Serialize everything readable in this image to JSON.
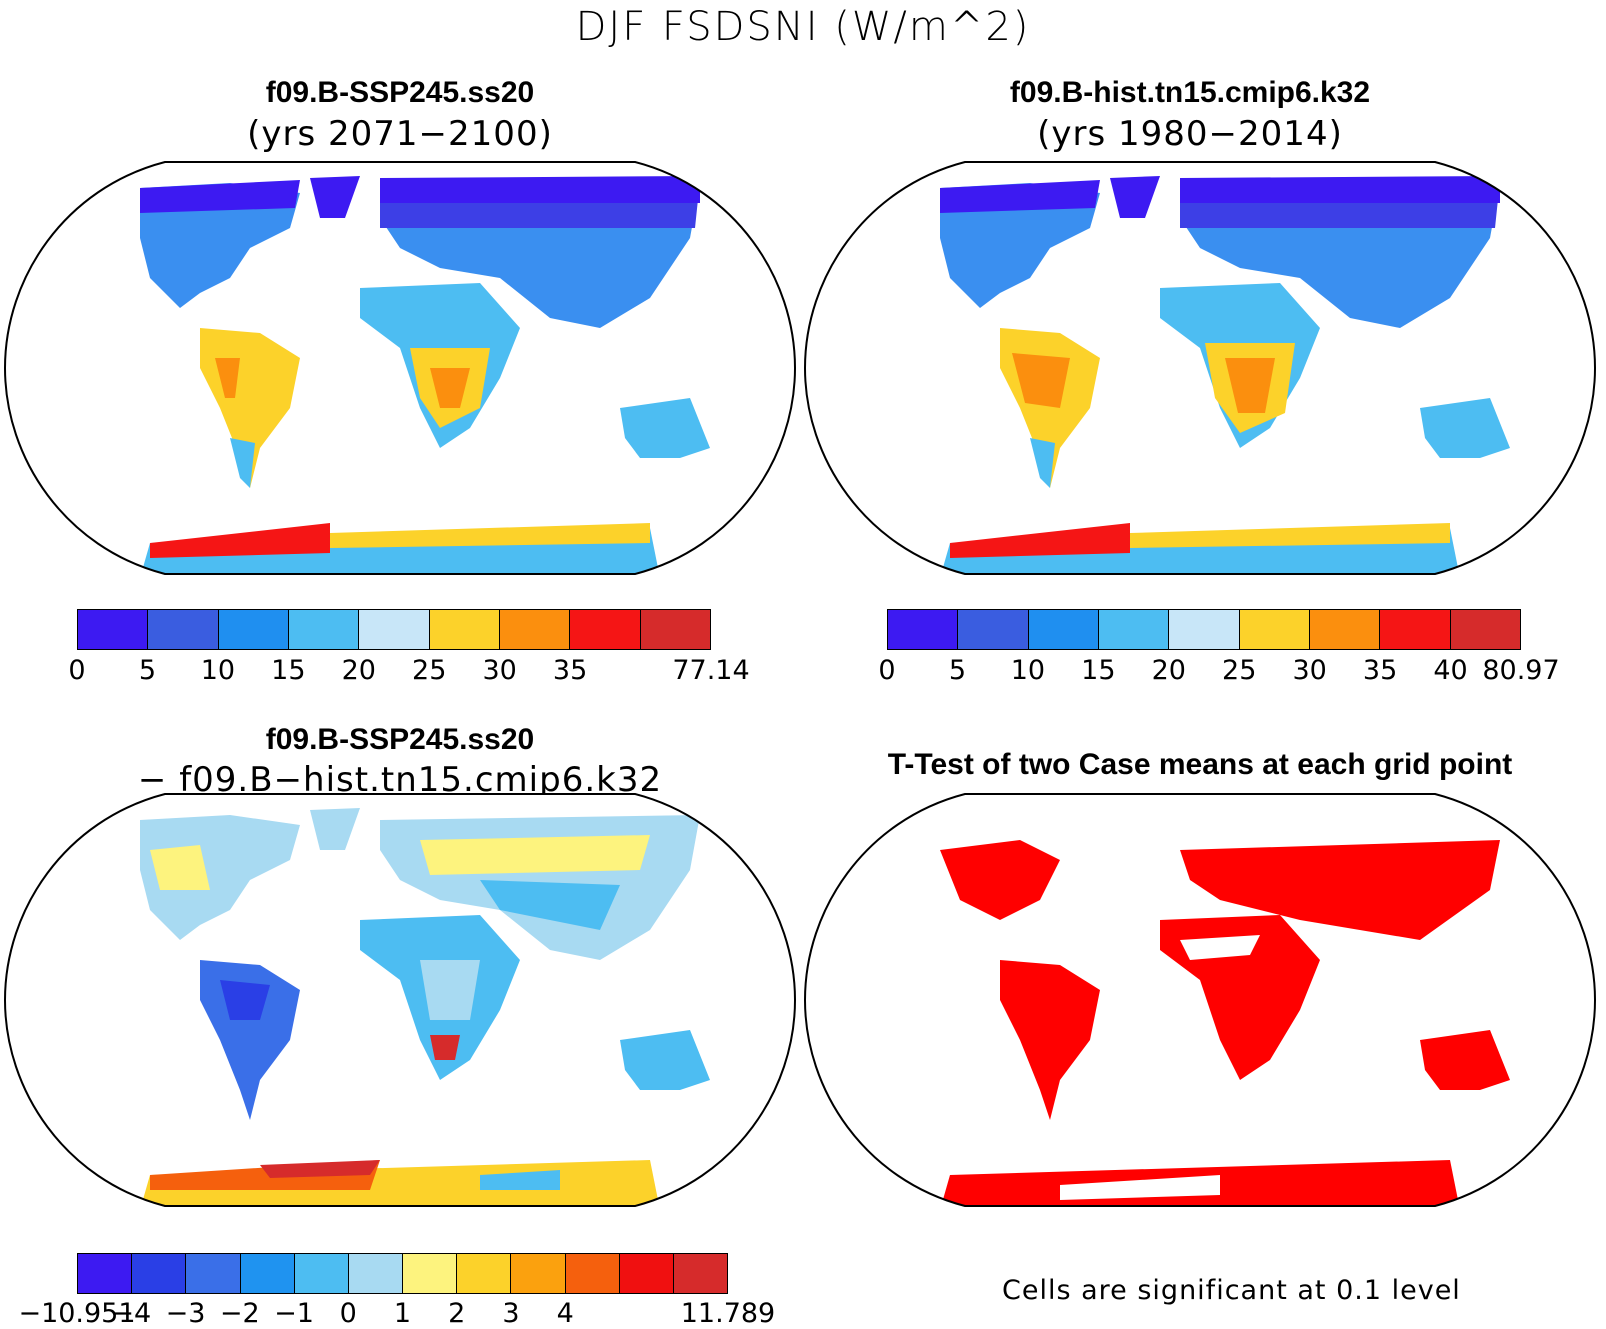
{
  "title": "DJF FSDSNI (W/m^2)",
  "panels": [
    {
      "id": "case1",
      "title": "f09.B-SSP245.ss20",
      "subtitle": "(yrs 2071−2100)",
      "colorbar": {
        "labels": [
          "0",
          "5",
          "10",
          "15",
          "20",
          "25",
          "30",
          "35",
          "77.14"
        ],
        "colors": [
          "#3d1af2",
          "#3a5de0",
          "#1f8ff0",
          "#4dbdf2",
          "#c8e6f8",
          "#fcd22a",
          "#fb8f0e",
          "#f51515",
          "#d62b2b"
        ]
      }
    },
    {
      "id": "case2",
      "title": "f09.B-hist.tn15.cmip6.k32",
      "subtitle": "(yrs 1980−2014)",
      "colorbar": {
        "labels": [
          "0",
          "5",
          "10",
          "15",
          "20",
          "25",
          "30",
          "35",
          "40",
          "80.97"
        ],
        "colors": [
          "#3d1af2",
          "#3a5de0",
          "#1f8ff0",
          "#4dbdf2",
          "#c8e6f8",
          "#fcd22a",
          "#fb8f0e",
          "#f51515",
          "#d62b2b"
        ]
      }
    },
    {
      "id": "diff",
      "title": "f09.B-SSP245.ss20",
      "subtitle": "− f09.B−hist.tn15.cmip6.k32",
      "colorbar": {
        "labels": [
          "−10.951",
          "−4",
          "−3",
          "−2",
          "−1",
          "0",
          "1",
          "2",
          "3",
          "4",
          "11.789"
        ],
        "colors": [
          "#3d1af2",
          "#2a3fe6",
          "#3a6fe8",
          "#1f93f0",
          "#4dbdf2",
          "#a8daf2",
          "#fdf37e",
          "#fcd22a",
          "#fba10e",
          "#f5600d",
          "#f01010",
          "#d62b2b"
        ]
      }
    },
    {
      "id": "ttest",
      "title": "T-Test of two Case means at each grid point",
      "note": "Cells are significant at 0.1 level",
      "significant_color": "#ff0000"
    }
  ]
}
